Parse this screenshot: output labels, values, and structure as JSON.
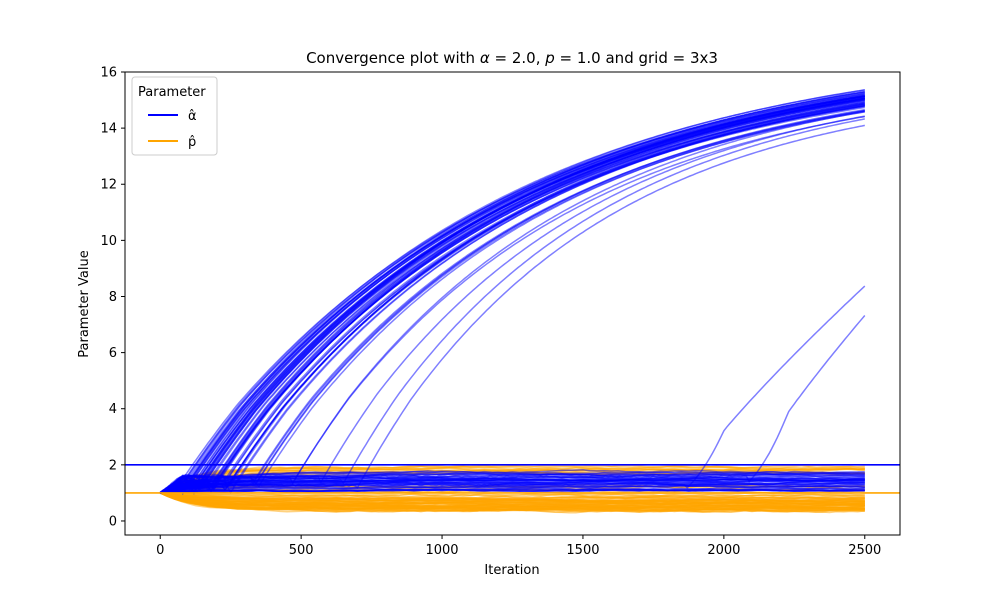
{
  "chart_data": {
    "type": "line",
    "title": "Convergence plot with α = 2.0, p = 1.0 and grid = 3x3",
    "xlabel": "Iteration",
    "ylabel": "Parameter Value",
    "xlim": [
      -125,
      2625
    ],
    "ylim": [
      -0.5,
      16
    ],
    "xticks": [
      "0",
      "500",
      "1000",
      "1500",
      "2000",
      "2500"
    ],
    "yticks": [
      "0",
      "2",
      "4",
      "6",
      "8",
      "10",
      "12",
      "14",
      "16"
    ],
    "grid": false,
    "legend": {
      "title": "Parameter",
      "placement": "top-left",
      "entries": [
        {
          "label": "α̂",
          "color": "#0000ff"
        },
        {
          "label": "p̂",
          "color": "#ffa500"
        }
      ]
    },
    "reference_lines": [
      {
        "name": "α",
        "y": 2.0,
        "color": "#0000ff"
      },
      {
        "name": "p",
        "y": 1.0,
        "color": "#ffa500"
      }
    ],
    "series_groups": [
      {
        "name": "α̂",
        "color": "#0000ff",
        "alpha": 0.5,
        "start": {
          "x": 0,
          "y": 1.0
        },
        "end_x": 2500,
        "trajectories": [
          {
            "takeoff_x": 90,
            "final_y": 15.25,
            "count": 14
          },
          {
            "takeoff_x": 130,
            "final_y": 15.1,
            "count": 14
          },
          {
            "takeoff_x": 180,
            "final_y": 14.95,
            "count": 12
          },
          {
            "takeoff_x": 240,
            "final_y": 14.85,
            "count": 10
          },
          {
            "takeoff_x": 330,
            "final_y": 14.7,
            "count": 5
          },
          {
            "takeoff_x": 470,
            "final_y": 14.5,
            "count": 2
          },
          {
            "takeoff_x": 560,
            "final_y": 14.4,
            "count": 1
          },
          {
            "takeoff_x": 640,
            "final_y": 14.3,
            "count": 1
          },
          {
            "takeoff_x": 700,
            "final_y": 14.15,
            "count": 1
          },
          {
            "takeoff_x": 1870,
            "final_y": 8.45,
            "count": 1
          },
          {
            "takeoff_x": 2100,
            "final_y": 7.2,
            "count": 1
          }
        ],
        "plateau_band": [
          1.0,
          1.75
        ]
      },
      {
        "name": "p̂",
        "color": "#ffa500",
        "alpha": 0.5,
        "start": {
          "x": 0,
          "y": 1.0
        },
        "end_x": 2500,
        "bands": [
          {
            "y_range": [
              0.35,
              0.95
            ],
            "count": 60
          },
          {
            "y_range": [
              1.05,
              1.25
            ],
            "count": 6
          },
          {
            "y_range": [
              1.7,
              1.95
            ],
            "count": 14
          }
        ]
      }
    ]
  }
}
